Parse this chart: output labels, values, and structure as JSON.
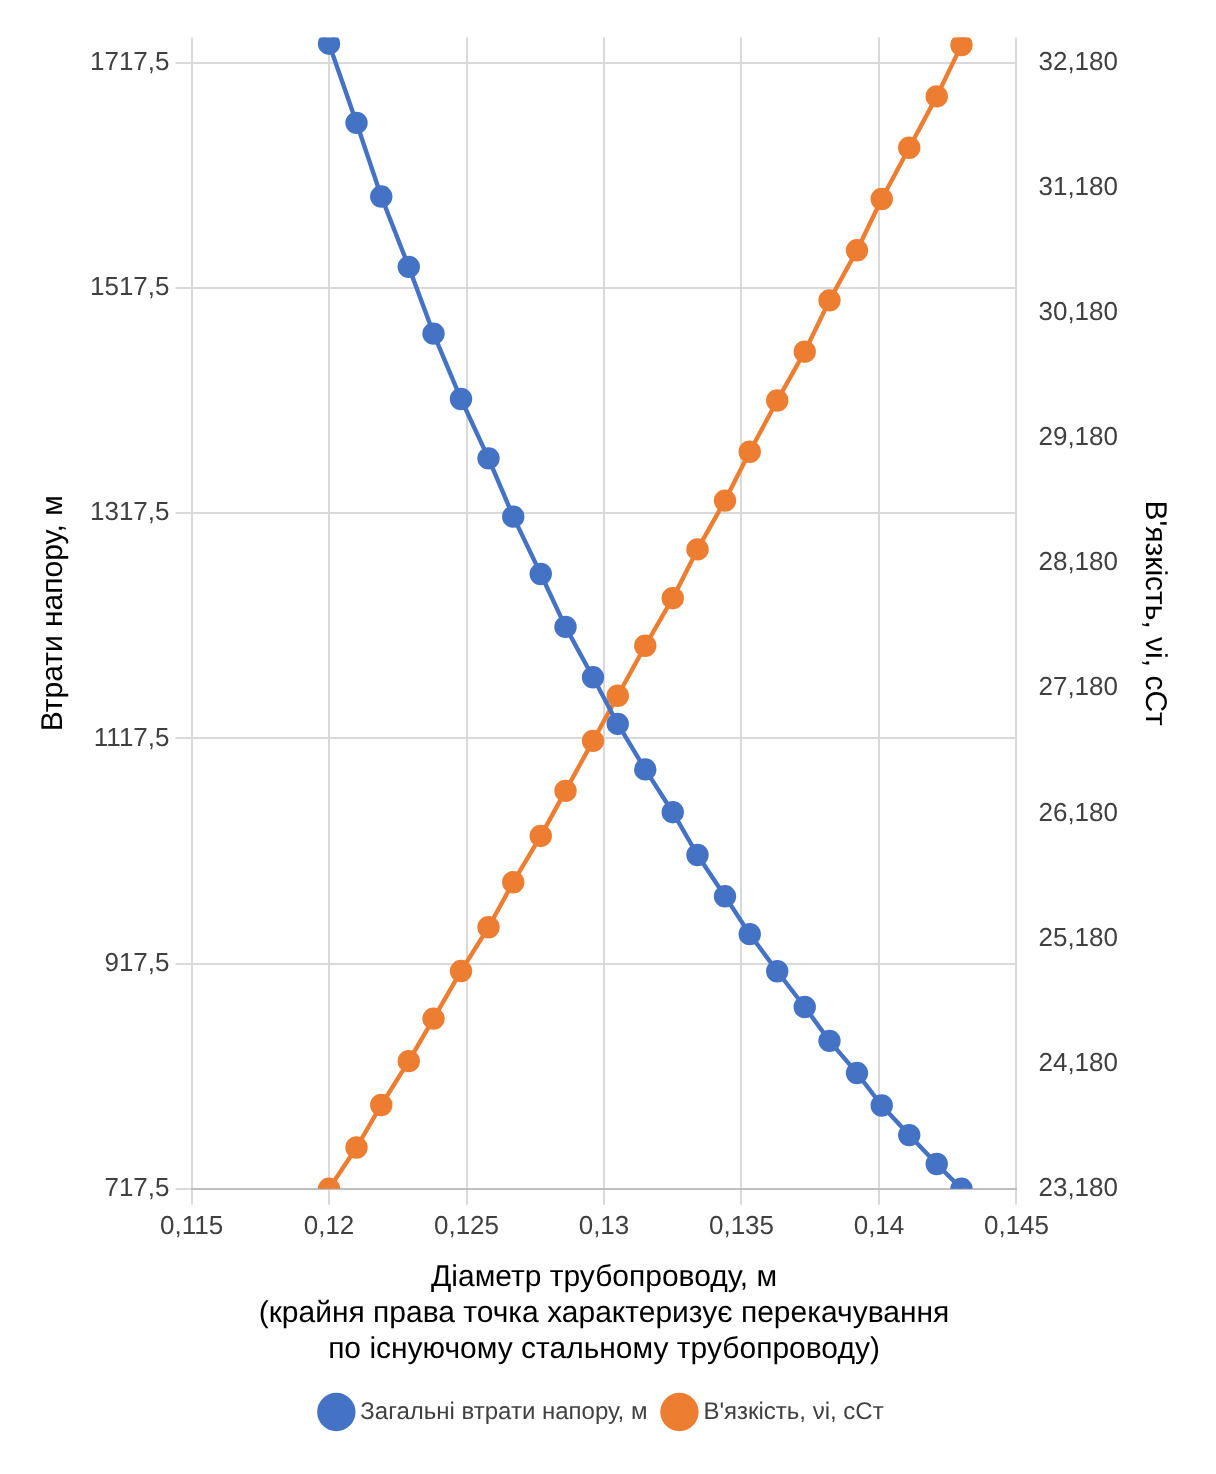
{
  "chart_data": {
    "type": "line",
    "xlabel": "Діаметр трубопроводу, м\n(крайня права точка характеризує перекачування\nпо існуючому стальному трубопроводу)",
    "ylabel": "Втрати напору, м",
    "y2label": "В'язкість, νі, сСт",
    "x": [
      0.12,
      0.121,
      0.1219,
      0.1229,
      0.1238,
      0.1248,
      0.1258,
      0.1267,
      0.1277,
      0.1286,
      0.1296,
      0.1305,
      0.1315,
      0.1325,
      0.1334,
      0.1344,
      0.1353,
      0.1363,
      0.1373,
      0.1382,
      0.1392,
      0.1401,
      0.1411,
      0.1421,
      0.143
    ],
    "series": [
      {
        "name": "Загальні втрати напору, м",
        "color": "#4472c4",
        "values": [
          1734.6,
          1664.3,
          1598.8,
          1536.4,
          1477.1,
          1419.0,
          1366.3,
          1314.5,
          1263.6,
          1216.6,
          1171.8,
          1130.4,
          1090.0,
          1052.0,
          1014.0,
          977.3,
          943.7,
          910.7,
          879.0,
          848.9,
          820.3,
          791.5,
          765.2,
          739.5,
          717.5
        ]
      },
      {
        "name": "В'язкість, νі, сСт",
        "color": "#ed7d31",
        "axis": "y2",
        "values": [
          23.18,
          23.51,
          23.85,
          24.2,
          24.54,
          24.92,
          25.27,
          25.63,
          26.0,
          26.36,
          26.76,
          27.12,
          27.52,
          27.9,
          28.29,
          28.68,
          29.07,
          29.48,
          29.87,
          30.28,
          30.68,
          31.09,
          31.5,
          31.91,
          32.32
        ]
      }
    ],
    "xlim": [
      0.115,
      0.145
    ],
    "xticks": [
      {
        "value": 0.115,
        "label": "0,115"
      },
      {
        "value": 0.12,
        "label": "0,12"
      },
      {
        "value": 0.125,
        "label": "0,125"
      },
      {
        "value": 0.13,
        "label": "0,13"
      },
      {
        "value": 0.135,
        "label": "0,135"
      },
      {
        "value": 0.14,
        "label": "0,14"
      },
      {
        "value": 0.145,
        "label": "0,145"
      }
    ],
    "ylim": [
      717.5,
      1740
    ],
    "yticks": [
      {
        "value": 717.5,
        "label": "717,5"
      },
      {
        "value": 917.5,
        "label": "917,5"
      },
      {
        "value": 1117.5,
        "label": "1117,5"
      },
      {
        "value": 1317.5,
        "label": "1317,5"
      },
      {
        "value": 1517.5,
        "label": "1517,5"
      },
      {
        "value": 1717.5,
        "label": "1717,5"
      }
    ],
    "y2lim": [
      23.18,
      32.38
    ],
    "y2ticks": [
      {
        "value": 23.18,
        "label": "23,180"
      },
      {
        "value": 24.18,
        "label": "24,180"
      },
      {
        "value": 25.18,
        "label": "25,180"
      },
      {
        "value": 26.18,
        "label": "26,180"
      },
      {
        "value": 27.18,
        "label": "27,180"
      },
      {
        "value": 28.18,
        "label": "28,180"
      },
      {
        "value": 29.18,
        "label": "29,180"
      },
      {
        "value": 30.18,
        "label": "30,180"
      },
      {
        "value": 31.18,
        "label": "31,180"
      },
      {
        "value": 32.18,
        "label": "32,180"
      }
    ],
    "grid": true,
    "legend": "bottom",
    "marker": "circle",
    "line_style": "solid"
  }
}
